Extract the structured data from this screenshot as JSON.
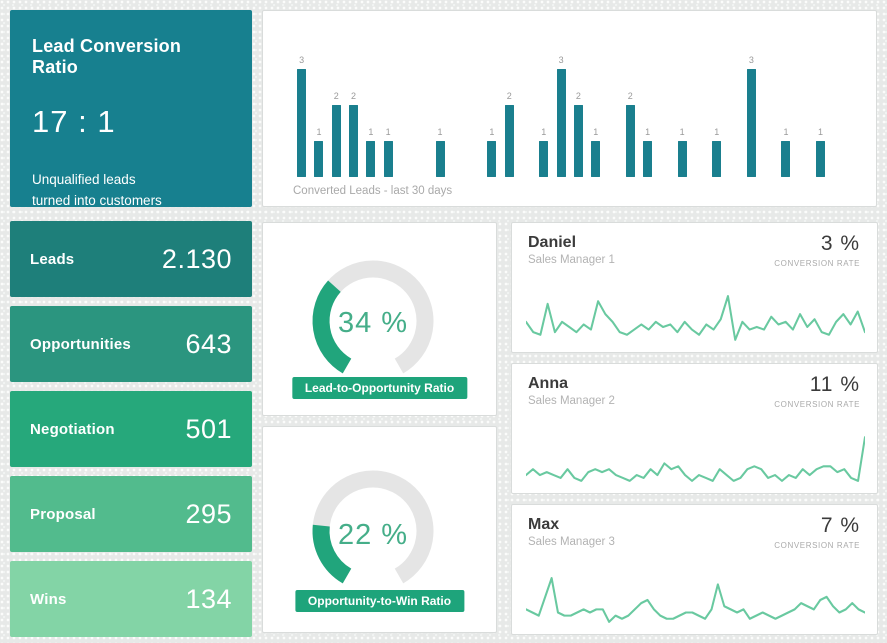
{
  "header_card": {
    "title": "Lead Conversion Ratio",
    "value": "17 : 1",
    "subtitle_line1": "Unqualified leads",
    "subtitle_line2": "turned into customers",
    "bg": "#17808f"
  },
  "kpis": {
    "items": [
      {
        "label": "Leads",
        "value": "2.130",
        "bg": "#1e7f7a"
      },
      {
        "label": "Opportunities",
        "value": "643",
        "bg": "#2b957f"
      },
      {
        "label": "Negotiation",
        "value": "501",
        "bg": "#26a87b"
      },
      {
        "label": "Proposal",
        "value": "295",
        "bg": "#52bb8d"
      },
      {
        "label": "Wins",
        "value": "134",
        "bg": "#83d4a6"
      }
    ]
  },
  "chart_data": [
    {
      "id": "converted-leads",
      "type": "bar",
      "title": "Converted Leads - last 30 days",
      "values": [
        3,
        1,
        2,
        2,
        1,
        1,
        0,
        0,
        1,
        0,
        0,
        1,
        2,
        0,
        1,
        3,
        2,
        1,
        0,
        2,
        1,
        0,
        1,
        0,
        1,
        0,
        3,
        0,
        1,
        0,
        1
      ],
      "ylim": [
        0,
        3
      ],
      "bar_color": "#1a7f8e",
      "value_labels": true,
      "axes_hidden": true
    },
    {
      "id": "lead-to-opportunity-gauge",
      "type": "gauge",
      "value": 34,
      "min": 0,
      "max": 100,
      "value_text": "34 %",
      "label": "Lead-to-Opportunity Ratio"
    },
    {
      "id": "opportunity-to-win-gauge",
      "type": "gauge",
      "value": 22,
      "min": 0,
      "max": 100,
      "value_text": "22 %",
      "label": "Opportunity-to-Win Ratio"
    },
    {
      "id": "daniel-trend",
      "type": "line",
      "series_name": "Daniel",
      "values": [
        5,
        3,
        2.5,
        8.5,
        3,
        5,
        4,
        3,
        4.5,
        3.5,
        9,
        6.5,
        5,
        3,
        2.5,
        3.5,
        4.5,
        3.5,
        5,
        4,
        4.5,
        3,
        5,
        3.5,
        2.5,
        4.5,
        3.5,
        5.5,
        10,
        1.5,
        5,
        3.5,
        4,
        3.5,
        6,
        4.5,
        5,
        3.5,
        6.5,
        4,
        5.5,
        3,
        2.5,
        5,
        6.5,
        4.5,
        7,
        3
      ]
    },
    {
      "id": "anna-trend",
      "type": "line",
      "series_name": "Anna",
      "values": [
        3.5,
        4.5,
        3.5,
        4,
        3.5,
        3,
        4.5,
        3,
        2.5,
        4,
        4.5,
        4,
        4.5,
        3.5,
        3,
        2.5,
        3.5,
        3,
        4.5,
        3.5,
        5.5,
        4.5,
        5,
        3.5,
        2.5,
        3.5,
        3,
        2.5,
        4.5,
        3.5,
        2.5,
        3,
        4.5,
        5,
        4.5,
        3,
        3.5,
        2.5,
        3.5,
        3,
        4.5,
        3.5,
        4.5,
        5,
        5,
        4,
        4.5,
        3,
        2.5,
        10
      ]
    },
    {
      "id": "max-trend",
      "type": "line",
      "series_name": "Max",
      "values": [
        4.5,
        4,
        3.5,
        6.5,
        9.5,
        4,
        3.5,
        3.5,
        4,
        4.5,
        4,
        4.5,
        4.5,
        2.5,
        3.5,
        3,
        3.5,
        4.5,
        5.5,
        6,
        4.5,
        3.5,
        3,
        3,
        3.5,
        4,
        4,
        3.5,
        3,
        4.5,
        8.5,
        5,
        4.5,
        4,
        4.5,
        3,
        3.5,
        4,
        3.5,
        3,
        3.5,
        4,
        4.5,
        5.5,
        5,
        4.5,
        6,
        6.5,
        5,
        4,
        4.5,
        5.5,
        4.5,
        4
      ]
    }
  ],
  "managers": {
    "items": [
      {
        "name": "Daniel",
        "role": "Sales Manager 1",
        "rate": "3 %",
        "rate_label": "CONVERSION RATE"
      },
      {
        "name": "Anna",
        "role": "Sales Manager 2",
        "rate": "11 %",
        "rate_label": "CONVERSION RATE"
      },
      {
        "name": "Max",
        "role": "Sales Manager 3",
        "rate": "7 %",
        "rate_label": "CONVERSION RATE"
      }
    ]
  },
  "colors": {
    "background": "#e8eae9",
    "panel_border": "#d9dcdb",
    "teal_dark": "#17808f",
    "bar_teal": "#1a7f8e",
    "gauge_green": "#21a57c",
    "gauge_track": "#e5e5e5",
    "gauge_value_text": "#45ae89",
    "banner_green": "#1ea47b",
    "sparkline": "#69c9a0",
    "text_dark": "#3b3b3b",
    "text_gray": "#a9a9a9"
  }
}
